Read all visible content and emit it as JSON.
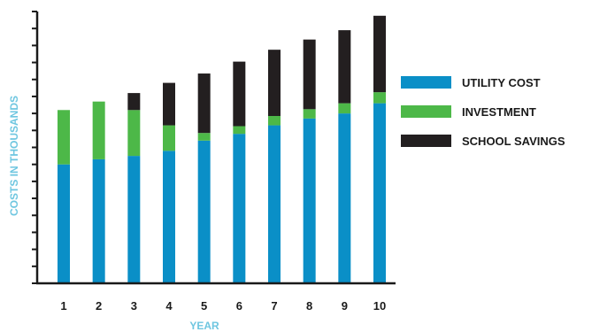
{
  "chart_data": {
    "type": "bar",
    "stacked": true,
    "xlabel": "YEAR",
    "ylabel": "COSTS IN THOUSANDS",
    "categories": [
      "1",
      "2",
      "3",
      "4",
      "5",
      "6",
      "7",
      "8",
      "9",
      "10"
    ],
    "ylim": [
      0,
      16
    ],
    "y_tick_count": 16,
    "y_tick_labels_shown": false,
    "series": [
      {
        "name": "UTILITY COST",
        "color": "#0a8fc7",
        "values": [
          7.0,
          7.3,
          7.5,
          7.8,
          8.4,
          8.8,
          9.3,
          9.7,
          10.0,
          10.6
        ]
      },
      {
        "name": "INVESTMENT",
        "color": "#4db848",
        "values": [
          3.2,
          3.4,
          2.7,
          1.5,
          0.45,
          0.45,
          0.55,
          0.55,
          0.6,
          0.65
        ]
      },
      {
        "name": "SCHOOL SAVINGS",
        "color": "#231f20",
        "values": [
          0.0,
          0.0,
          1.0,
          2.5,
          3.5,
          3.8,
          3.9,
          4.1,
          4.3,
          4.5
        ]
      }
    ],
    "legend_position": "right",
    "grid": false,
    "axis_title_color": "#6ec6e0"
  }
}
